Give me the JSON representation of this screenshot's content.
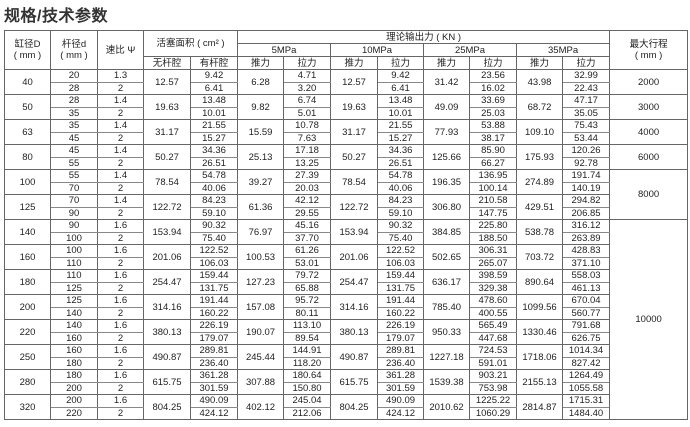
{
  "title": "规格/技术参数",
  "header": {
    "bore": "缸径D",
    "rod": "杆径d",
    "mm": "( mm )",
    "ratio": "速比 Ψ",
    "area": "活塞面积 ( cm² )",
    "area_bore": "无杆腔",
    "area_rod": "有杆腔",
    "force": "理论输出力 ( KN )",
    "pressures": [
      "5MPa",
      "10MPa",
      "25MPa",
      "35MPa"
    ],
    "push": "推力",
    "pull": "拉力",
    "stroke": "最大行程",
    "stroke_unit": "( mm )"
  },
  "strokes": [
    {
      "value": "2000",
      "groups": 1
    },
    {
      "value": "3000",
      "groups": 1
    },
    {
      "value": "4000",
      "groups": 1
    },
    {
      "value": "6000",
      "groups": 1
    },
    {
      "value": "8000",
      "groups": 2
    },
    {
      "value": "10000",
      "groups": 8
    }
  ],
  "groups": [
    {
      "D": "40",
      "bore_area": "12.57",
      "push": [
        "6.28",
        "12.57",
        "31.42",
        "43.98"
      ],
      "rows": [
        {
          "d": "20",
          "ratio": "1.3",
          "rod_area": "9.42",
          "pull": [
            "4.71",
            "9.42",
            "23.56",
            "32.99"
          ]
        },
        {
          "d": "28",
          "ratio": "2",
          "rod_area": "6.41",
          "pull": [
            "3.20",
            "6.41",
            "16.02",
            "22.43"
          ]
        }
      ]
    },
    {
      "D": "50",
      "bore_area": "19.63",
      "push": [
        "9.82",
        "19.63",
        "49.09",
        "68.72"
      ],
      "rows": [
        {
          "d": "28",
          "ratio": "1.4",
          "rod_area": "13.48",
          "pull": [
            "6.74",
            "13.48",
            "33.69",
            "47.17"
          ]
        },
        {
          "d": "35",
          "ratio": "2",
          "rod_area": "10.01",
          "pull": [
            "5.01",
            "10.01",
            "25.03",
            "35.05"
          ]
        }
      ]
    },
    {
      "D": "63",
      "bore_area": "31.17",
      "push": [
        "15.59",
        "31.17",
        "77.93",
        "109.10"
      ],
      "rows": [
        {
          "d": "35",
          "ratio": "1.4",
          "rod_area": "21.55",
          "pull": [
            "10.78",
            "21.55",
            "53.88",
            "75.43"
          ]
        },
        {
          "d": "45",
          "ratio": "2",
          "rod_area": "15.27",
          "pull": [
            "7.63",
            "15.27",
            "38.17",
            "53.44"
          ]
        }
      ]
    },
    {
      "D": "80",
      "bore_area": "50.27",
      "push": [
        "25.13",
        "50.27",
        "125.66",
        "175.93"
      ],
      "rows": [
        {
          "d": "45",
          "ratio": "1.4",
          "rod_area": "34.36",
          "pull": [
            "17.18",
            "34.36",
            "85.90",
            "120.26"
          ]
        },
        {
          "d": "55",
          "ratio": "2",
          "rod_area": "26.51",
          "pull": [
            "13.25",
            "26.51",
            "66.27",
            "92.78"
          ]
        }
      ]
    },
    {
      "D": "100",
      "bore_area": "78.54",
      "push": [
        "39.27",
        "78.54",
        "196.35",
        "274.89"
      ],
      "rows": [
        {
          "d": "55",
          "ratio": "1.4",
          "rod_area": "54.78",
          "pull": [
            "27.39",
            "54.78",
            "136.95",
            "191.74"
          ]
        },
        {
          "d": "70",
          "ratio": "2",
          "rod_area": "40.06",
          "pull": [
            "20.03",
            "40.06",
            "100.14",
            "140.19"
          ]
        }
      ]
    },
    {
      "D": "125",
      "bore_area": "122.72",
      "push": [
        "61.36",
        "122.72",
        "306.80",
        "429.51"
      ],
      "rows": [
        {
          "d": "70",
          "ratio": "1.4",
          "rod_area": "84.23",
          "pull": [
            "42.12",
            "84.23",
            "210.58",
            "294.82"
          ]
        },
        {
          "d": "90",
          "ratio": "2",
          "rod_area": "59.10",
          "pull": [
            "29.55",
            "59.10",
            "147.75",
            "206.85"
          ]
        }
      ]
    },
    {
      "D": "140",
      "bore_area": "153.94",
      "push": [
        "76.97",
        "153.94",
        "384.85",
        "538.78"
      ],
      "rows": [
        {
          "d": "90",
          "ratio": "1.6",
          "rod_area": "90.32",
          "pull": [
            "45.16",
            "90.32",
            "225.80",
            "316.12"
          ]
        },
        {
          "d": "100",
          "ratio": "2",
          "rod_area": "75.40",
          "pull": [
            "37.70",
            "75.40",
            "188.50",
            "263.89"
          ]
        }
      ]
    },
    {
      "D": "160",
      "bore_area": "201.06",
      "push": [
        "100.53",
        "201.06",
        "502.65",
        "703.72"
      ],
      "rows": [
        {
          "d": "100",
          "ratio": "1.6",
          "rod_area": "122.52",
          "pull": [
            "61.26",
            "122.52",
            "306.31",
            "428.83"
          ]
        },
        {
          "d": "110",
          "ratio": "2",
          "rod_area": "106.03",
          "pull": [
            "53.01",
            "106.03",
            "265.07",
            "371.10"
          ]
        }
      ]
    },
    {
      "D": "180",
      "bore_area": "254.47",
      "push": [
        "127.23",
        "254.47",
        "636.17",
        "890.64"
      ],
      "rows": [
        {
          "d": "110",
          "ratio": "1.6",
          "rod_area": "159.44",
          "pull": [
            "79.72",
            "159.44",
            "398.59",
            "558.03"
          ]
        },
        {
          "d": "125",
          "ratio": "2",
          "rod_area": "131.75",
          "pull": [
            "65.88",
            "131.75",
            "329.38",
            "461.13"
          ]
        }
      ]
    },
    {
      "D": "200",
      "bore_area": "314.16",
      "push": [
        "157.08",
        "314.16",
        "785.40",
        "1099.56"
      ],
      "rows": [
        {
          "d": "125",
          "ratio": "1.6",
          "rod_area": "191.44",
          "pull": [
            "95.72",
            "191.44",
            "478.60",
            "670.04"
          ]
        },
        {
          "d": "140",
          "ratio": "2",
          "rod_area": "160.22",
          "pull": [
            "80.11",
            "160.22",
            "400.55",
            "560.77"
          ]
        }
      ]
    },
    {
      "D": "220",
      "bore_area": "380.13",
      "push": [
        "190.07",
        "380.13",
        "950.33",
        "1330.46"
      ],
      "rows": [
        {
          "d": "140",
          "ratio": "1.6",
          "rod_area": "226.19",
          "pull": [
            "113.10",
            "226.19",
            "565.49",
            "791.68"
          ]
        },
        {
          "d": "160",
          "ratio": "2",
          "rod_area": "179.07",
          "pull": [
            "89.54",
            "179.07",
            "447.68",
            "626.75"
          ]
        }
      ]
    },
    {
      "D": "250",
      "bore_area": "490.87",
      "push": [
        "245.44",
        "490.87",
        "1227.18",
        "1718.06"
      ],
      "rows": [
        {
          "d": "160",
          "ratio": "1.6",
          "rod_area": "289.81",
          "pull": [
            "144.91",
            "289.81",
            "724.53",
            "1014.34"
          ]
        },
        {
          "d": "180",
          "ratio": "2",
          "rod_area": "236.40",
          "pull": [
            "118.20",
            "236.40",
            "591.01",
            "827.42"
          ]
        }
      ]
    },
    {
      "D": "280",
      "bore_area": "615.75",
      "push": [
        "307.88",
        "615.75",
        "1539.38",
        "2155.13"
      ],
      "rows": [
        {
          "d": "180",
          "ratio": "1.6",
          "rod_area": "361.28",
          "pull": [
            "180.64",
            "361.28",
            "903.21",
            "1264.49"
          ]
        },
        {
          "d": "200",
          "ratio": "2",
          "rod_area": "301.59",
          "pull": [
            "150.80",
            "301.59",
            "753.98",
            "1055.58"
          ]
        }
      ]
    },
    {
      "D": "320",
      "bore_area": "804.25",
      "push": [
        "402.12",
        "804.25",
        "2010.62",
        "2814.87"
      ],
      "rows": [
        {
          "d": "200",
          "ratio": "1.6",
          "rod_area": "490.09",
          "pull": [
            "245.04",
            "490.09",
            "1225.22",
            "1715.31"
          ]
        },
        {
          "d": "220",
          "ratio": "2",
          "rod_area": "424.12",
          "pull": [
            "212.06",
            "424.12",
            "1060.29",
            "1484.40"
          ]
        }
      ]
    }
  ]
}
